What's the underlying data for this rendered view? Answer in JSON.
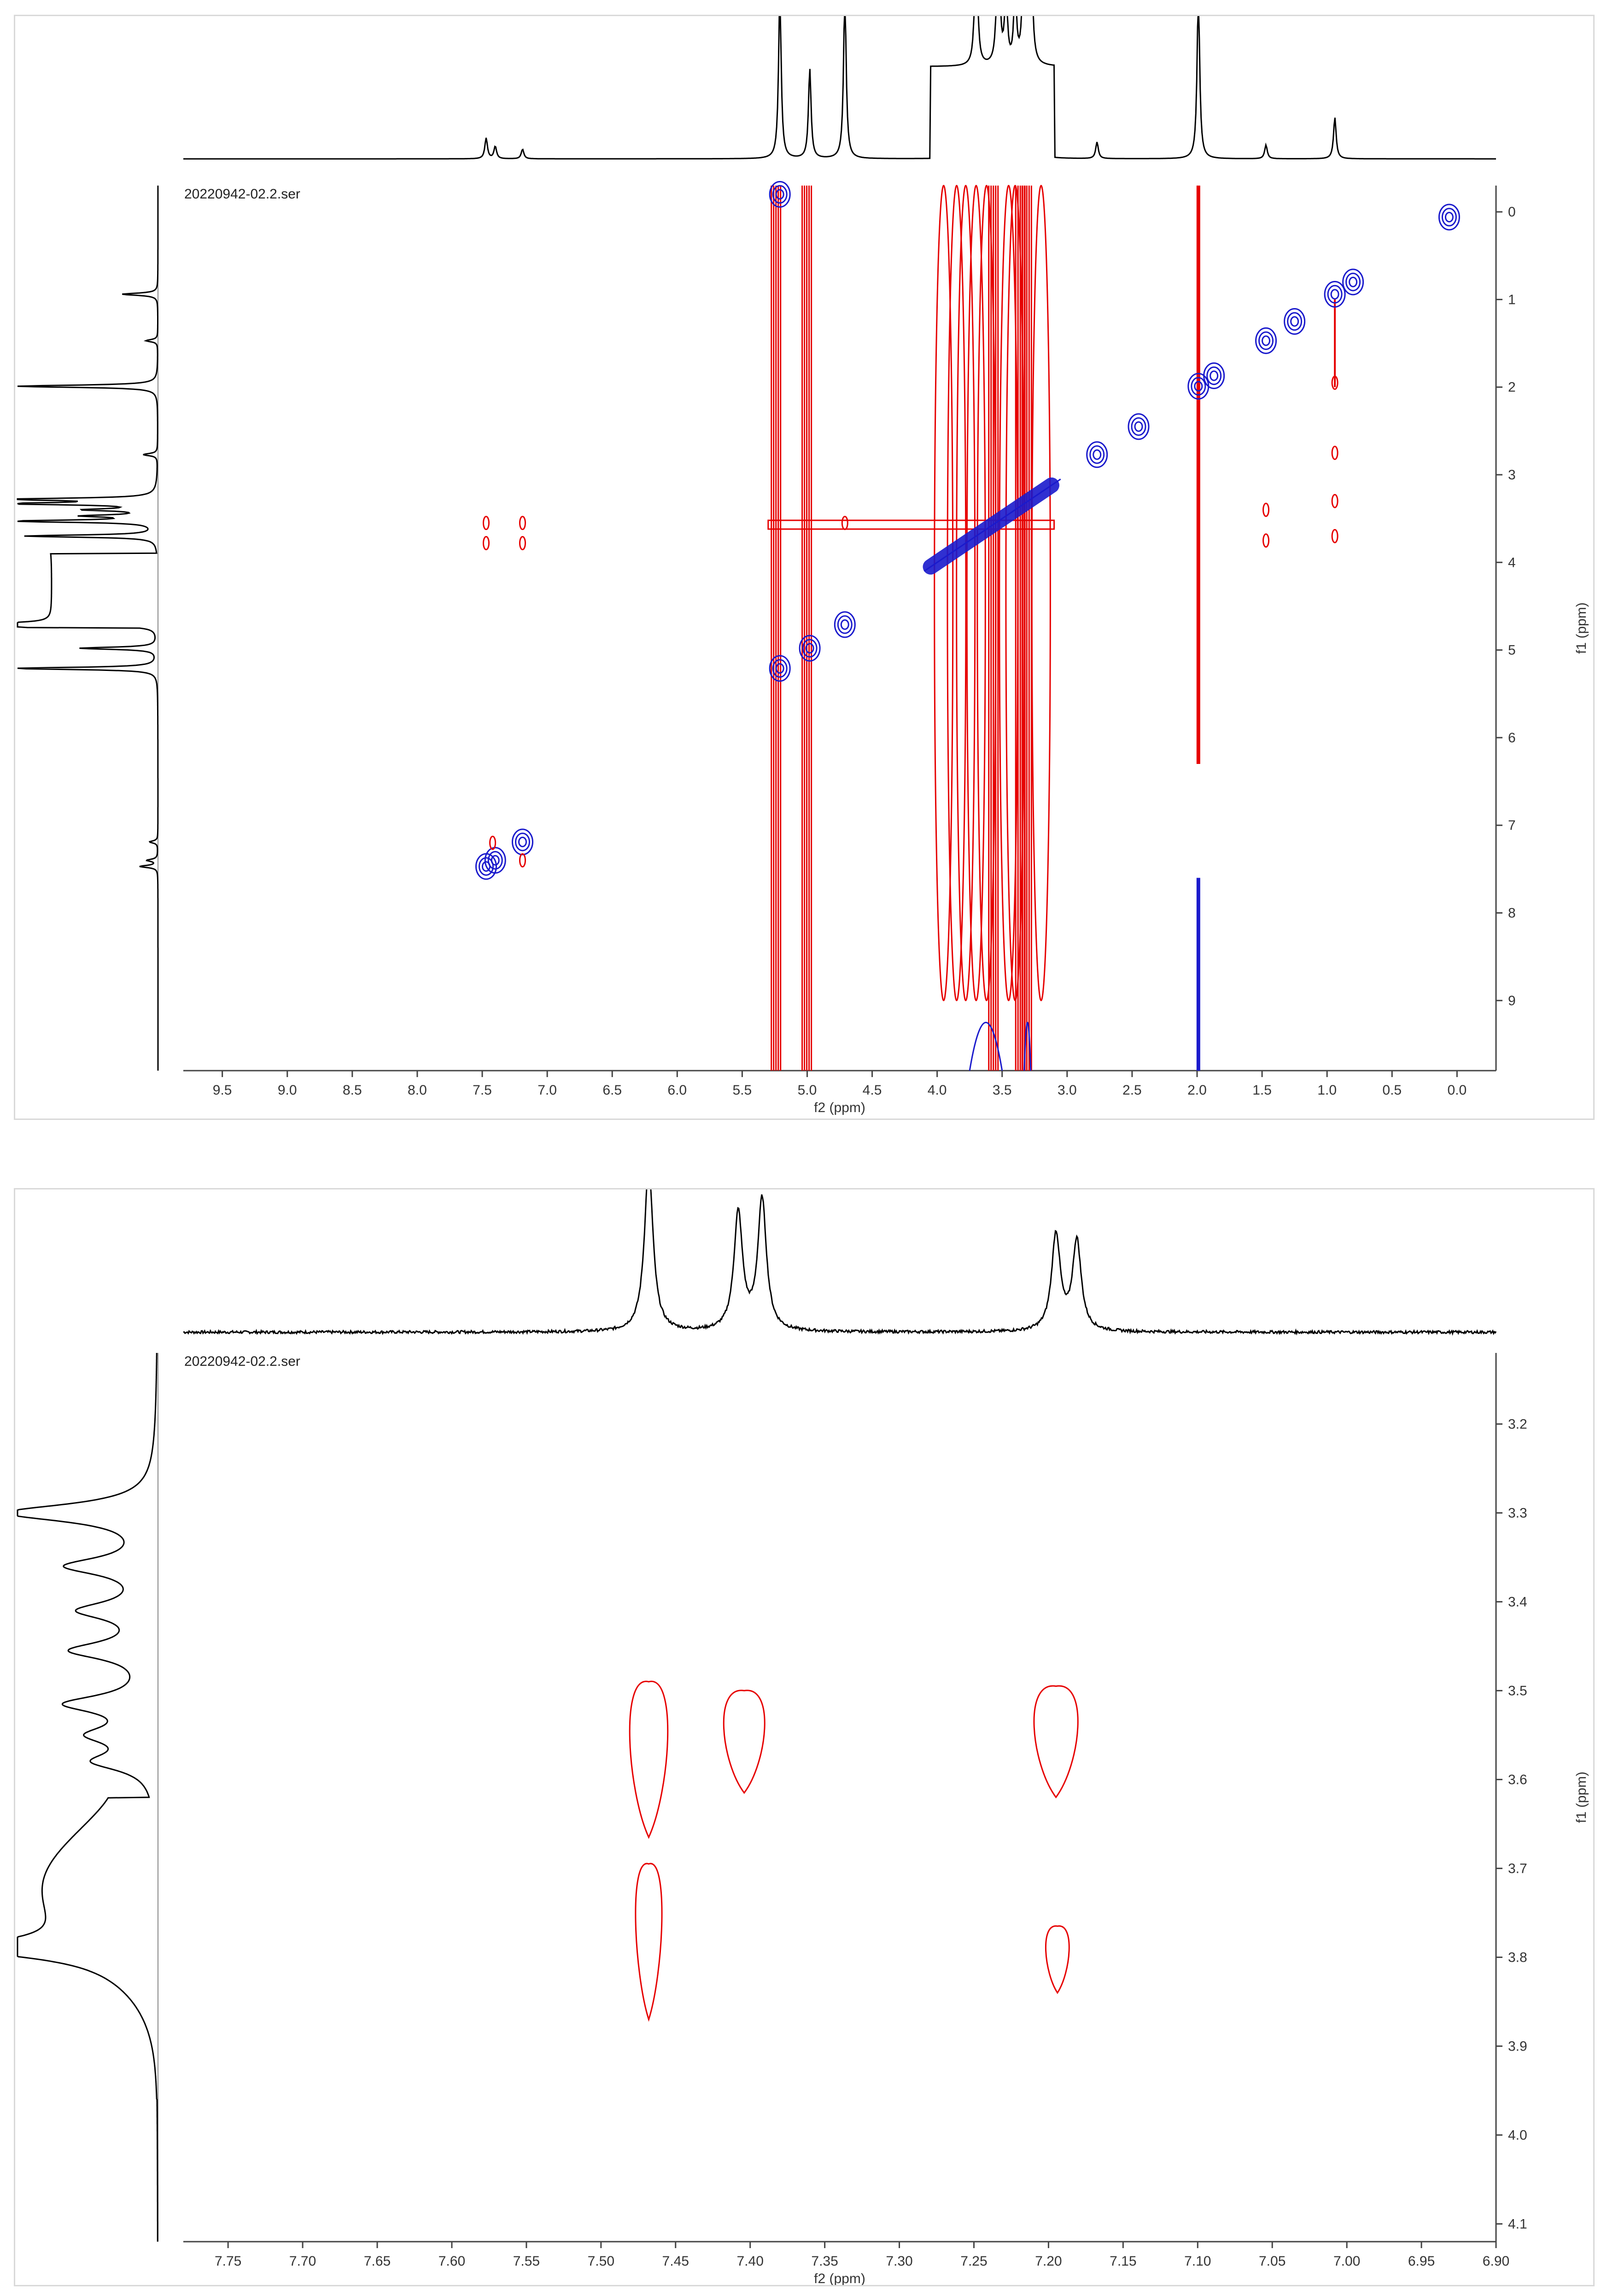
{
  "chart_data": [
    {
      "type": "nmr-2d-contour",
      "file_label": "20220942-02.2.ser",
      "xlabel": "f2 (ppm)",
      "ylabel": "f1 (ppm)",
      "xlim": [
        9.8,
        -0.3
      ],
      "ylim": [
        -0.3,
        9.8
      ],
      "x_ticks": [
        "9.5",
        "9.0",
        "8.5",
        "8.0",
        "7.5",
        "7.0",
        "6.5",
        "6.0",
        "5.5",
        "5.0",
        "4.5",
        "4.0",
        "3.5",
        "3.0",
        "2.5",
        "2.0",
        "1.5",
        "1.0",
        "0.5",
        "0.0"
      ],
      "y_ticks": [
        "0",
        "1",
        "2",
        "3",
        "4",
        "5",
        "6",
        "7",
        "8",
        "9"
      ],
      "colors": {
        "positive": "#e60000",
        "negative": "#1a1acc",
        "projection": "#000000"
      },
      "projection_peaks": [
        {
          "ppm": 7.47,
          "height": 0.15
        },
        {
          "ppm": 7.4,
          "height": 0.09
        },
        {
          "ppm": 7.19,
          "height": 0.07
        },
        {
          "ppm": 5.21,
          "height": 1.2
        },
        {
          "ppm": 4.98,
          "height": 0.65
        },
        {
          "ppm": 4.71,
          "height": 1.2
        },
        {
          "ppm": 3.7,
          "height": 1.1
        },
        {
          "ppm": 3.53,
          "height": 1.2
        },
        {
          "ppm": 3.47,
          "height": 0.55
        },
        {
          "ppm": 3.4,
          "height": 0.55
        },
        {
          "ppm": 3.33,
          "height": 1.2
        },
        {
          "ppm": 3.28,
          "height": 1.2
        },
        {
          "ppm": 2.77,
          "height": 0.12
        },
        {
          "ppm": 1.99,
          "height": 1.2
        },
        {
          "ppm": 1.47,
          "height": 0.1
        },
        {
          "ppm": 0.94,
          "height": 0.3
        }
      ],
      "diagonal_peaks": [
        {
          "f2": 7.47,
          "f1": 7.47
        },
        {
          "f2": 7.4,
          "f1": 7.4
        },
        {
          "f2": 7.19,
          "f1": 7.19
        },
        {
          "f2": 5.21,
          "f1": 5.21
        },
        {
          "f2": 4.98,
          "f1": 4.98
        },
        {
          "f2": 4.71,
          "f1": 4.71
        },
        {
          "f2": 2.77,
          "f1": 2.77
        },
        {
          "f2": 1.99,
          "f1": 1.99
        },
        {
          "f2": 1.87,
          "f1": 1.87
        },
        {
          "f2": 1.47,
          "f1": 1.47
        },
        {
          "f2": 1.25,
          "f1": 1.25
        },
        {
          "f2": 0.94,
          "f1": 0.94
        },
        {
          "f2": 0.8,
          "f1": 0.8
        },
        {
          "f2": 2.45,
          "f1": 2.45
        },
        {
          "f2": 5.21,
          "f1": -0.2
        },
        {
          "f2": 0.06,
          "f1": 0.06
        }
      ],
      "cross_peaks": [
        {
          "f2": 7.47,
          "f1": 3.55
        },
        {
          "f2": 7.47,
          "f1": 3.78
        },
        {
          "f2": 7.19,
          "f1": 3.55
        },
        {
          "f2": 7.19,
          "f1": 3.78
        },
        {
          "f2": 7.42,
          "f1": 7.2
        },
        {
          "f2": 7.19,
          "f1": 7.4
        },
        {
          "f2": 1.47,
          "f1": 3.4
        },
        {
          "f2": 1.47,
          "f1": 3.75
        },
        {
          "f2": 0.94,
          "f1": 3.3
        },
        {
          "f2": 0.94,
          "f1": 3.7
        },
        {
          "f2": 0.94,
          "f1": 2.75
        },
        {
          "f2": 0.94,
          "f1": 1.95
        },
        {
          "f2": 4.71,
          "f1": 3.55
        }
      ]
    },
    {
      "type": "nmr-2d-contour",
      "file_label": "20220942-02.2.ser",
      "xlabel": "f2 (ppm)",
      "ylabel": "f1 (ppm)",
      "xlim": [
        7.78,
        6.9
      ],
      "ylim": [
        3.12,
        4.12
      ],
      "x_ticks": [
        "7.75",
        "7.70",
        "7.65",
        "7.60",
        "7.55",
        "7.50",
        "7.45",
        "7.40",
        "7.35",
        "7.30",
        "7.25",
        "7.20",
        "7.15",
        "7.10",
        "7.05",
        "7.00",
        "6.95",
        "6.90"
      ],
      "y_ticks": [
        "3.2",
        "3.3",
        "3.4",
        "3.5",
        "3.6",
        "3.7",
        "3.8",
        "3.9",
        "4.0",
        "4.1"
      ],
      "colors": {
        "positive": "#e60000",
        "projection": "#000000"
      },
      "projection_peaks_f2": [
        {
          "ppm": 7.468,
          "height": 1.2
        },
        {
          "ppm": 7.408,
          "height": 0.85
        },
        {
          "ppm": 7.392,
          "height": 0.95
        },
        {
          "ppm": 7.195,
          "height": 0.7
        },
        {
          "ppm": 7.181,
          "height": 0.65
        }
      ],
      "cross_peaks": [
        {
          "f2": 7.468,
          "f1_top": 3.49,
          "f1_bottom": 3.665,
          "half_width": 0.013
        },
        {
          "f2": 7.404,
          "f1_top": 3.5,
          "f1_bottom": 3.615,
          "half_width": 0.014
        },
        {
          "f2": 7.195,
          "f1_top": 3.495,
          "f1_bottom": 3.62,
          "half_width": 0.015
        },
        {
          "f2": 7.468,
          "f1_top": 3.695,
          "f1_bottom": 3.87,
          "half_width": 0.009
        },
        {
          "f2": 7.194,
          "f1_top": 3.765,
          "f1_bottom": 3.84,
          "half_width": 0.008
        }
      ]
    }
  ]
}
